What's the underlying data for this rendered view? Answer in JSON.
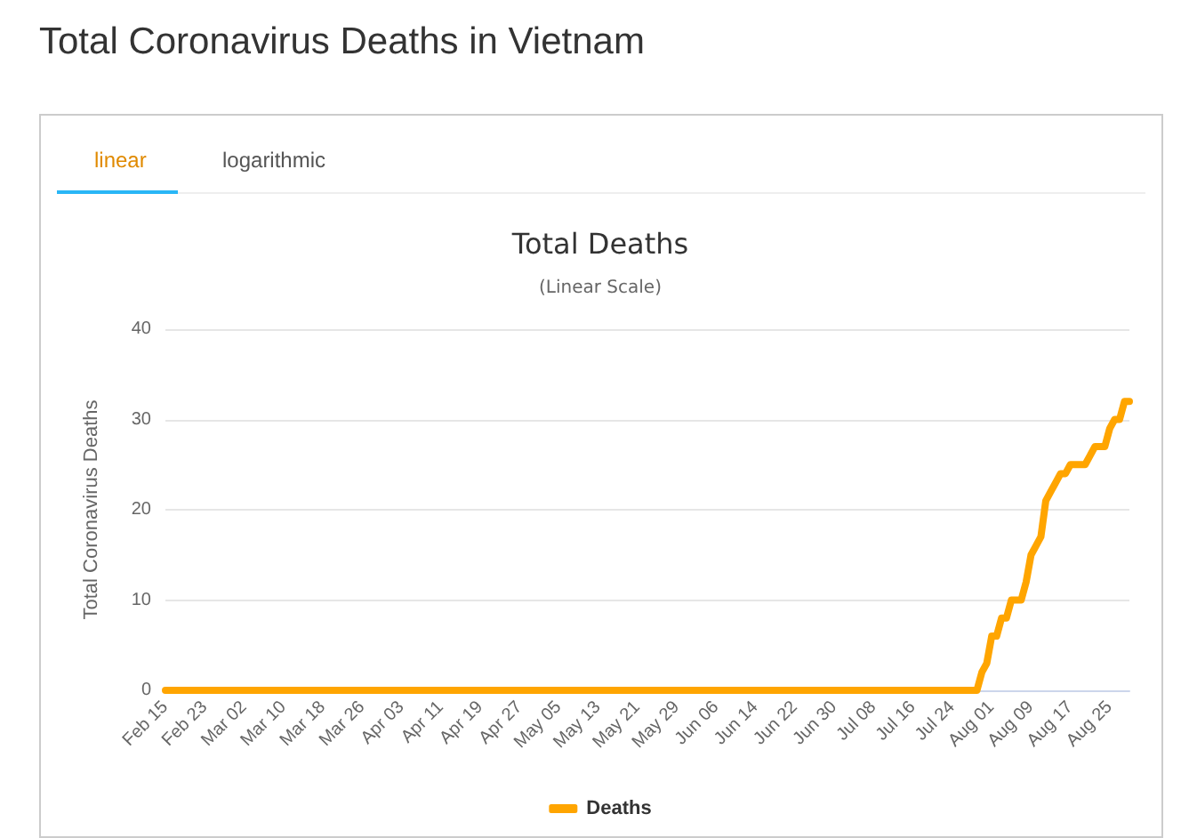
{
  "chart_data": {
    "type": "line",
    "title": "Total Deaths",
    "subtitle": "(Linear Scale)",
    "ylabel": "Total Coronavirus Deaths",
    "annotations": [
      "Total Coronavirus Deaths in Vietnam",
      "linear",
      "logarithmic"
    ],
    "categories": [
      "Feb 15",
      null,
      null,
      null,
      null,
      null,
      null,
      null,
      "Feb 23",
      null,
      null,
      null,
      null,
      null,
      null,
      null,
      "Mar 02",
      null,
      null,
      null,
      null,
      null,
      null,
      null,
      "Mar 10",
      null,
      null,
      null,
      null,
      null,
      null,
      null,
      "Mar 18",
      null,
      null,
      null,
      null,
      null,
      null,
      null,
      "Mar 26",
      null,
      null,
      null,
      null,
      null,
      null,
      null,
      "Apr 03",
      null,
      null,
      null,
      null,
      null,
      null,
      null,
      "Apr 11",
      null,
      null,
      null,
      null,
      null,
      null,
      null,
      "Apr 19",
      null,
      null,
      null,
      null,
      null,
      null,
      null,
      "Apr 27",
      null,
      null,
      null,
      null,
      null,
      null,
      null,
      "May 05",
      null,
      null,
      null,
      null,
      null,
      null,
      null,
      "May 13",
      null,
      null,
      null,
      null,
      null,
      null,
      null,
      "May 21",
      null,
      null,
      null,
      null,
      null,
      null,
      null,
      "May 29",
      null,
      null,
      null,
      null,
      null,
      null,
      null,
      "Jun 06",
      null,
      null,
      null,
      null,
      null,
      null,
      null,
      "Jun 14",
      null,
      null,
      null,
      null,
      null,
      null,
      null,
      "Jun 22",
      null,
      null,
      null,
      null,
      null,
      null,
      null,
      "Jun 30",
      null,
      null,
      null,
      null,
      null,
      null,
      null,
      "Jul 08",
      null,
      null,
      null,
      null,
      null,
      null,
      null,
      "Jul 16",
      null,
      null,
      null,
      null,
      null,
      null,
      null,
      "Jul 24",
      null,
      null,
      null,
      null,
      null,
      null,
      null,
      "Aug 01",
      null,
      null,
      null,
      null,
      null,
      null,
      null,
      "Aug 09",
      null,
      null,
      null,
      null,
      null,
      null,
      null,
      "Aug 17",
      null,
      null,
      null,
      null,
      null,
      null,
      null,
      "Aug 25",
      null,
      null,
      null,
      null
    ],
    "series": [
      {
        "name": "Deaths",
        "color": "#ffa500",
        "values": [
          0,
          0,
          0,
          0,
          0,
          0,
          0,
          0,
          0,
          0,
          0,
          0,
          0,
          0,
          0,
          0,
          0,
          0,
          0,
          0,
          0,
          0,
          0,
          0,
          0,
          0,
          0,
          0,
          0,
          0,
          0,
          0,
          0,
          0,
          0,
          0,
          0,
          0,
          0,
          0,
          0,
          0,
          0,
          0,
          0,
          0,
          0,
          0,
          0,
          0,
          0,
          0,
          0,
          0,
          0,
          0,
          0,
          0,
          0,
          0,
          0,
          0,
          0,
          0,
          0,
          0,
          0,
          0,
          0,
          0,
          0,
          0,
          0,
          0,
          0,
          0,
          0,
          0,
          0,
          0,
          0,
          0,
          0,
          0,
          0,
          0,
          0,
          0,
          0,
          0,
          0,
          0,
          0,
          0,
          0,
          0,
          0,
          0,
          0,
          0,
          0,
          0,
          0,
          0,
          0,
          0,
          0,
          0,
          0,
          0,
          0,
          0,
          0,
          0,
          0,
          0,
          0,
          0,
          0,
          0,
          0,
          0,
          0,
          0,
          0,
          0,
          0,
          0,
          0,
          0,
          0,
          0,
          0,
          0,
          0,
          0,
          0,
          0,
          0,
          0,
          0,
          0,
          0,
          0,
          0,
          0,
          0,
          0,
          0,
          0,
          0,
          0,
          0,
          0,
          0,
          0,
          0,
          0,
          0,
          0,
          0,
          0,
          0,
          0,
          0,
          0,
          2,
          3,
          6,
          6,
          8,
          8,
          10,
          10,
          10,
          12,
          15,
          16,
          17,
          21,
          22,
          23,
          24,
          24,
          25,
          25,
          25,
          25,
          26,
          27,
          27,
          27,
          29,
          30,
          30,
          32,
          32
        ]
      }
    ],
    "ylim": [
      0,
      40
    ],
    "yticks": [
      0,
      10,
      20,
      30,
      40
    ],
    "grid": "y",
    "legend": "bottom",
    "marker": "none",
    "line_style": "solid"
  }
}
